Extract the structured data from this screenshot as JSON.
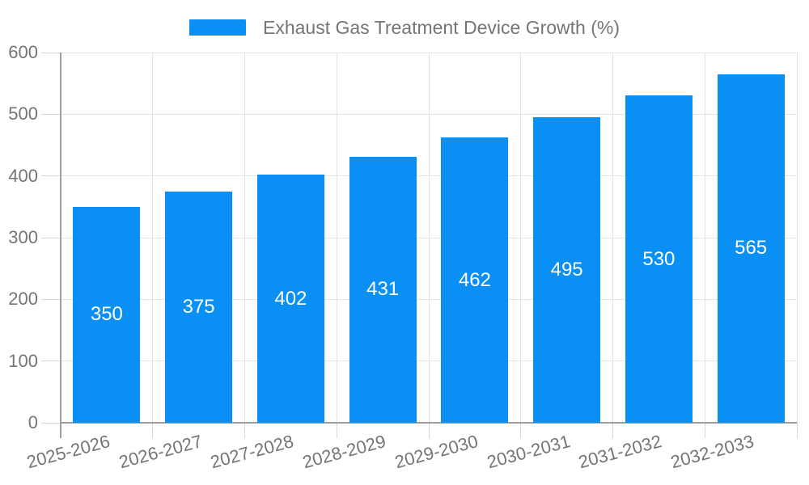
{
  "chart_data": {
    "type": "bar",
    "title": "Exhaust Gas Treatment Device Growth (%)",
    "categories": [
      "2025-2026",
      "2026-2027",
      "2027-2028",
      "2028-2029",
      "2029-2030",
      "2030-2031",
      "2031-2032",
      "2032-2033"
    ],
    "series": [
      {
        "name": "Exhaust Gas Treatment Device Growth (%)",
        "values": [
          350,
          375,
          402,
          431,
          462,
          495,
          530,
          565
        ]
      }
    ],
    "value_labels_shown": true,
    "xlabel": "",
    "ylabel": "",
    "ylim": [
      0,
      600
    ],
    "yticks": [
      0,
      100,
      200,
      300,
      400,
      500,
      600
    ],
    "grid": "horizontal and vertical",
    "legend_position": "top-center",
    "x_label_rotation_deg": -15,
    "colors": {
      "bar": "#0A90F5",
      "grid": "#e3e3e3",
      "tick": "#d6d6d6",
      "axis": "#9e9e9e",
      "label": "#757575",
      "value_label": "#ffffff",
      "background": "#ffffff"
    }
  }
}
